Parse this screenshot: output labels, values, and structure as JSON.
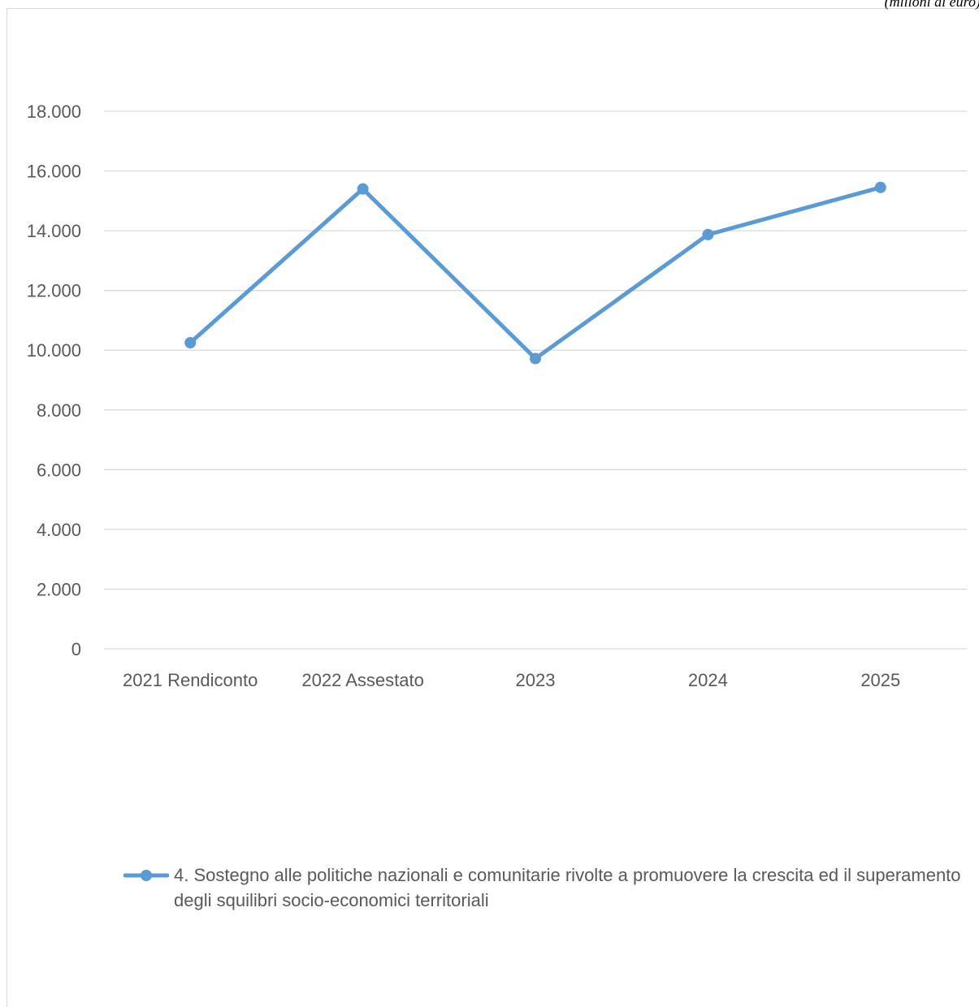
{
  "unit_note": "(milioni di euro)",
  "colors": {
    "series": "#5b9bd5",
    "grid": "#d9d9d9",
    "tick_text": "#595959"
  },
  "chart_data": {
    "type": "line",
    "categories": [
      "2021 Rendiconto",
      "2022 Assestato",
      "2023",
      "2024",
      "2025"
    ],
    "series": [
      {
        "name": "4. Sostegno alle politiche nazionali e comunitarie rivolte a promuovere la crescita ed il superamento degli squilibri socio-economici territoriali",
        "values": [
          10250,
          15400,
          9720,
          13870,
          15450
        ]
      }
    ],
    "yticks": [
      "0",
      "2.000",
      "4.000",
      "6.000",
      "8.000",
      "10.000",
      "12.000",
      "14.000",
      "16.000",
      "18.000"
    ],
    "ylim": [
      0,
      18000
    ],
    "grid": true,
    "legend_position": "bottom",
    "markers": "circle"
  }
}
